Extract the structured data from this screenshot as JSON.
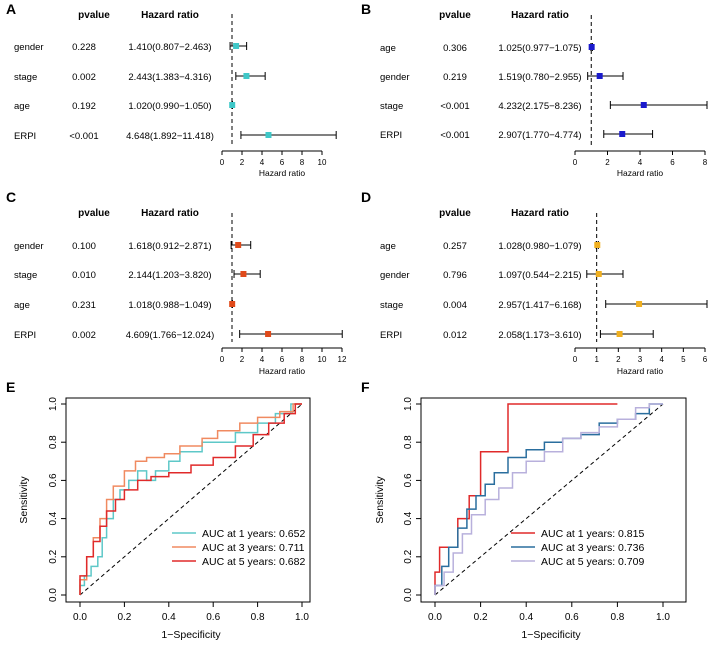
{
  "colors": {
    "A": "#3fc8c8",
    "B": "#1a1acc",
    "C": "#e04a1a",
    "D": "#f0b020",
    "roc_E": [
      "#5ec8c8",
      "#f08a60",
      "#e02a2a"
    ],
    "roc_F": [
      "#e02a2a",
      "#2a6e9e",
      "#b8b0dc"
    ]
  },
  "chart_data": [
    {
      "type": "forest",
      "panel": "A",
      "header_pvalue": "pvalue",
      "header_hr": "Hazard ratio",
      "xlabel": "Hazard ratio",
      "xlim": [
        0,
        12
      ],
      "ticks": [
        0,
        2,
        4,
        6,
        8,
        10
      ],
      "rows": [
        {
          "label": "gender",
          "pvalue": "0.228",
          "hr_text": "1.410(0.807−2.463)",
          "hr": 1.41,
          "lo": 0.807,
          "hi": 2.463
        },
        {
          "label": "stage",
          "pvalue": "0.002",
          "hr_text": "2.443(1.383−4.316)",
          "hr": 2.443,
          "lo": 1.383,
          "hi": 4.316
        },
        {
          "label": "age",
          "pvalue": "0.192",
          "hr_text": "1.020(0.990−1.050)",
          "hr": 1.02,
          "lo": 0.99,
          "hi": 1.05
        },
        {
          "label": "ERPI",
          "pvalue": "<0.001",
          "hr_text": "4.648(1.892−11.418)",
          "hr": 4.648,
          "lo": 1.892,
          "hi": 11.418
        }
      ]
    },
    {
      "type": "forest",
      "panel": "B",
      "header_pvalue": "pvalue",
      "header_hr": "Hazard ratio",
      "xlabel": "Hazard ratio",
      "xlim": [
        0,
        8
      ],
      "ticks": [
        0,
        2,
        4,
        6,
        8
      ],
      "rows": [
        {
          "label": "age",
          "pvalue": "0.306",
          "hr_text": "1.025(0.977−1.075)",
          "hr": 1.025,
          "lo": 0.977,
          "hi": 1.075
        },
        {
          "label": "gender",
          "pvalue": "0.219",
          "hr_text": "1.519(0.780−2.955)",
          "hr": 1.519,
          "lo": 0.78,
          "hi": 2.955
        },
        {
          "label": "stage",
          "pvalue": "<0.001",
          "hr_text": "4.232(2.175−8.236)",
          "hr": 4.232,
          "lo": 2.175,
          "hi": 8.236
        },
        {
          "label": "ERPI",
          "pvalue": "<0.001",
          "hr_text": "2.907(1.770−4.774)",
          "hr": 2.907,
          "lo": 1.77,
          "hi": 4.774
        }
      ]
    },
    {
      "type": "forest",
      "panel": "C",
      "header_pvalue": "pvalue",
      "header_hr": "Hazard ratio",
      "xlabel": "Hazard ratio",
      "xlim": [
        0,
        12
      ],
      "ticks": [
        0,
        2,
        4,
        6,
        8,
        10,
        12
      ],
      "rows": [
        {
          "label": "gender",
          "pvalue": "0.100",
          "hr_text": "1.618(0.912−2.871)",
          "hr": 1.618,
          "lo": 0.912,
          "hi": 2.871
        },
        {
          "label": "stage",
          "pvalue": "0.010",
          "hr_text": "2.144(1.203−3.820)",
          "hr": 2.144,
          "lo": 1.203,
          "hi": 3.82
        },
        {
          "label": "age",
          "pvalue": "0.231",
          "hr_text": "1.018(0.988−1.049)",
          "hr": 1.018,
          "lo": 0.988,
          "hi": 1.049
        },
        {
          "label": "ERPI",
          "pvalue": "0.002",
          "hr_text": "4.609(1.766−12.024)",
          "hr": 4.609,
          "lo": 1.766,
          "hi": 12.024
        }
      ]
    },
    {
      "type": "forest",
      "panel": "D",
      "header_pvalue": "pvalue",
      "header_hr": "Hazard ratio",
      "xlabel": "Hazard ratio",
      "xlim": [
        0,
        6
      ],
      "ticks": [
        0,
        1,
        2,
        3,
        4,
        5,
        6
      ],
      "rows": [
        {
          "label": "age",
          "pvalue": "0.257",
          "hr_text": "1.028(0.980−1.079)",
          "hr": 1.028,
          "lo": 0.98,
          "hi": 1.079
        },
        {
          "label": "gender",
          "pvalue": "0.796",
          "hr_text": "1.097(0.544−2.215)",
          "hr": 1.097,
          "lo": 0.544,
          "hi": 2.215
        },
        {
          "label": "stage",
          "pvalue": "0.004",
          "hr_text": "2.957(1.417−6.168)",
          "hr": 2.957,
          "lo": 1.417,
          "hi": 6.168
        },
        {
          "label": "ERPI",
          "pvalue": "0.012",
          "hr_text": "2.058(1.173−3.610)",
          "hr": 2.058,
          "lo": 1.173,
          "hi": 3.61
        }
      ]
    },
    {
      "type": "line",
      "panel": "E",
      "xlabel": "1−Specificity",
      "ylabel": "Sensitivity",
      "xlim": [
        0,
        1
      ],
      "ylim": [
        0,
        1
      ],
      "ticks": [
        "0.0",
        "0.2",
        "0.4",
        "0.6",
        "0.8",
        "1.0"
      ],
      "series": [
        {
          "name": "AUC at 1 years: 0.652",
          "x": [
            0,
            0,
            0.02,
            0.02,
            0.05,
            0.05,
            0.08,
            0.08,
            0.1,
            0.1,
            0.12,
            0.12,
            0.15,
            0.15,
            0.18,
            0.18,
            0.22,
            0.22,
            0.26,
            0.26,
            0.3,
            0.3,
            0.34,
            0.34,
            0.4,
            0.4,
            0.45,
            0.45,
            0.55,
            0.55,
            0.7,
            0.7,
            0.8,
            0.8,
            0.88,
            0.88,
            0.95,
            0.95,
            1.0
          ],
          "y": [
            0,
            0.05,
            0.05,
            0.1,
            0.1,
            0.15,
            0.15,
            0.2,
            0.2,
            0.3,
            0.3,
            0.4,
            0.4,
            0.5,
            0.5,
            0.55,
            0.55,
            0.6,
            0.6,
            0.65,
            0.65,
            0.6,
            0.6,
            0.65,
            0.65,
            0.7,
            0.7,
            0.75,
            0.75,
            0.8,
            0.8,
            0.85,
            0.85,
            0.9,
            0.9,
            0.95,
            0.95,
            1.0,
            1.0
          ]
        },
        {
          "name": "AUC at 3 years: 0.711",
          "x": [
            0,
            0,
            0.03,
            0.03,
            0.06,
            0.06,
            0.09,
            0.09,
            0.12,
            0.12,
            0.15,
            0.15,
            0.2,
            0.2,
            0.25,
            0.25,
            0.3,
            0.3,
            0.38,
            0.38,
            0.45,
            0.45,
            0.55,
            0.55,
            0.62,
            0.62,
            0.72,
            0.72,
            0.8,
            0.8,
            0.9,
            0.9,
            0.96,
            0.96,
            1.0
          ],
          "y": [
            0,
            0.08,
            0.08,
            0.2,
            0.2,
            0.3,
            0.3,
            0.4,
            0.4,
            0.5,
            0.5,
            0.57,
            0.57,
            0.65,
            0.65,
            0.7,
            0.7,
            0.72,
            0.72,
            0.74,
            0.74,
            0.78,
            0.78,
            0.82,
            0.82,
            0.86,
            0.86,
            0.9,
            0.9,
            0.93,
            0.93,
            0.96,
            0.96,
            1.0,
            1.0
          ]
        },
        {
          "name": "AUC at 5 years: 0.682",
          "x": [
            0,
            0,
            0.03,
            0.03,
            0.06,
            0.06,
            0.09,
            0.09,
            0.12,
            0.12,
            0.16,
            0.16,
            0.2,
            0.2,
            0.26,
            0.26,
            0.32,
            0.32,
            0.4,
            0.4,
            0.5,
            0.5,
            0.6,
            0.6,
            0.7,
            0.7,
            0.78,
            0.78,
            0.85,
            0.85,
            0.92,
            0.92,
            0.97,
            0.97,
            1.0
          ],
          "y": [
            0,
            0.1,
            0.1,
            0.2,
            0.2,
            0.28,
            0.28,
            0.36,
            0.36,
            0.44,
            0.44,
            0.5,
            0.5,
            0.55,
            0.55,
            0.6,
            0.6,
            0.62,
            0.62,
            0.64,
            0.64,
            0.68,
            0.68,
            0.72,
            0.72,
            0.78,
            0.78,
            0.84,
            0.84,
            0.9,
            0.9,
            0.95,
            0.95,
            1.0,
            1.0
          ]
        }
      ]
    },
    {
      "type": "line",
      "panel": "F",
      "xlabel": "1−Specificity",
      "ylabel": "Sensitivity",
      "xlim": [
        0,
        1
      ],
      "ylim": [
        0,
        1
      ],
      "ticks": [
        "0.0",
        "0.2",
        "0.4",
        "0.6",
        "0.8",
        "1.0"
      ],
      "series": [
        {
          "name": "AUC at 1 years: 0.815",
          "x": [
            0,
            0,
            0.02,
            0.02,
            0.1,
            0.1,
            0.15,
            0.15,
            0.2,
            0.2,
            0.25,
            0.25,
            0.32,
            0.32,
            0.8
          ],
          "y": [
            0,
            0.12,
            0.12,
            0.25,
            0.25,
            0.4,
            0.4,
            0.52,
            0.52,
            0.75,
            0.75,
            0.75,
            0.75,
            1.0,
            1.0
          ]
        },
        {
          "name": "AUC at 3 years: 0.736",
          "x": [
            0,
            0,
            0.03,
            0.03,
            0.06,
            0.06,
            0.1,
            0.1,
            0.14,
            0.14,
            0.18,
            0.18,
            0.22,
            0.22,
            0.26,
            0.26,
            0.32,
            0.32,
            0.4,
            0.4,
            0.48,
            0.48,
            0.56,
            0.56,
            0.64,
            0.64,
            0.72,
            0.72,
            0.8,
            0.8,
            0.88,
            0.88,
            0.94,
            0.94,
            1.0
          ],
          "y": [
            0,
            0.05,
            0.05,
            0.15,
            0.15,
            0.25,
            0.25,
            0.35,
            0.35,
            0.45,
            0.45,
            0.52,
            0.52,
            0.58,
            0.58,
            0.64,
            0.64,
            0.72,
            0.72,
            0.76,
            0.76,
            0.8,
            0.8,
            0.82,
            0.82,
            0.84,
            0.84,
            0.9,
            0.9,
            0.92,
            0.92,
            0.95,
            0.95,
            1.0,
            1.0
          ]
        },
        {
          "name": "AUC at 5 years: 0.709",
          "x": [
            0,
            0,
            0.04,
            0.04,
            0.08,
            0.08,
            0.12,
            0.12,
            0.16,
            0.16,
            0.22,
            0.22,
            0.28,
            0.28,
            0.34,
            0.34,
            0.4,
            0.4,
            0.48,
            0.48,
            0.56,
            0.56,
            0.64,
            0.64,
            0.72,
            0.72,
            0.8,
            0.8,
            0.88,
            0.88,
            0.94,
            0.94,
            1.0
          ],
          "y": [
            0,
            0.05,
            0.05,
            0.12,
            0.12,
            0.22,
            0.22,
            0.32,
            0.32,
            0.42,
            0.42,
            0.5,
            0.5,
            0.56,
            0.56,
            0.64,
            0.64,
            0.7,
            0.7,
            0.75,
            0.75,
            0.82,
            0.82,
            0.85,
            0.85,
            0.88,
            0.88,
            0.92,
            0.92,
            0.98,
            0.98,
            1.0,
            1.0
          ]
        }
      ]
    }
  ]
}
